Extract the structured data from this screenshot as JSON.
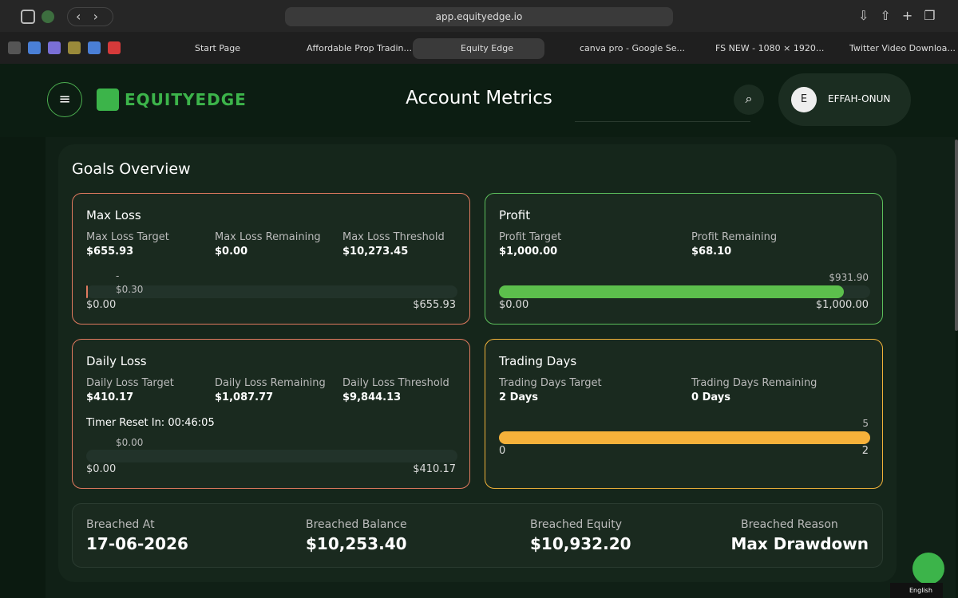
{
  "browser": {
    "url": "app.equityedge.io",
    "tabs": [
      "Start Page",
      "Affordable Prop Tradin...",
      "Equity Edge",
      "canva pro - Google Se...",
      "FS NEW - 1080 × 1920...",
      "Twitter Video Downloa..."
    ]
  },
  "header": {
    "logo": "EQUITYEDGE",
    "title": "Account Metrics",
    "avatar": "E",
    "user": "EFFAH-ONUN"
  },
  "goals": {
    "title": "Goals Overview",
    "max_loss": {
      "title": "Max Loss",
      "metrics": [
        {
          "label": "Max Loss Target",
          "value": "$655.93"
        },
        {
          "label": "Max Loss Remaining",
          "value": "$0.00"
        },
        {
          "label": "Max Loss Threshold",
          "value": "$10,273.45"
        }
      ],
      "marker": "-",
      "bar_label": "$0.30",
      "min": "$0.00",
      "max": "$655.93"
    },
    "profit": {
      "title": "Profit",
      "metrics": [
        {
          "label": "Profit Target",
          "value": "$1,000.00"
        },
        {
          "label": "Profit Remaining",
          "value": "$68.10"
        }
      ],
      "bar_label": "$931.90",
      "min": "$0.00",
      "max": "$1,000.00"
    },
    "daily_loss": {
      "title": "Daily Loss",
      "metrics": [
        {
          "label": "Daily Loss Target",
          "value": "$410.17"
        },
        {
          "label": "Daily Loss Remaining",
          "value": "$1,087.77"
        },
        {
          "label": "Daily Loss Threshold",
          "value": "$9,844.13"
        }
      ],
      "timer": "Timer Reset In: 00:46:05",
      "bar_label": "$0.00",
      "min": "$0.00",
      "max": "$410.17"
    },
    "trading_days": {
      "title": "Trading Days",
      "metrics": [
        {
          "label": "Trading Days Target",
          "value": "2 Days"
        },
        {
          "label": "Trading Days Remaining",
          "value": "0 Days"
        }
      ],
      "bar_label": "5",
      "min": "0",
      "max": "2"
    }
  },
  "breach": [
    {
      "label": "Breached At",
      "value": "17-06-2026"
    },
    {
      "label": "Breached Balance",
      "value": "$10,253.40"
    },
    {
      "label": "Breached Equity",
      "value": "$10,932.20"
    },
    {
      "label": "Breached Reason",
      "value": "Max Drawdown"
    }
  ],
  "footer": {
    "language": "English"
  }
}
